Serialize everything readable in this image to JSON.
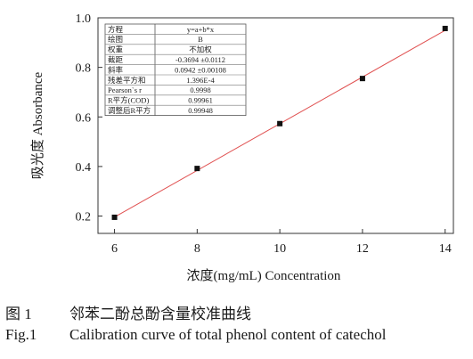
{
  "chart_data": {
    "type": "scatter",
    "xlabel": "浓度(mg/mL) Concentration",
    "ylabel": "吸光度 Absorbance",
    "xlim": [
      5.6,
      14.2
    ],
    "ylim": [
      0.13,
      1.0
    ],
    "xticks": [
      6,
      8,
      10,
      12,
      14
    ],
    "yticks": [
      0.2,
      0.4,
      0.6,
      0.8,
      1.0
    ],
    "x": [
      6,
      8,
      10,
      12,
      14
    ],
    "y": [
      0.195,
      0.392,
      0.573,
      0.755,
      0.957
    ],
    "fit": {
      "intercept": -0.3694,
      "slope": 0.0942
    },
    "colors": {
      "points": "#111111",
      "fit_line": "#e05050",
      "axes": "#333333"
    },
    "stats_table": [
      {
        "key": "方程",
        "value": "y=a+b*x"
      },
      {
        "key": "绘图",
        "value": "B"
      },
      {
        "key": "权重",
        "value": "不加权"
      },
      {
        "key": "截距",
        "value": "-0.3694 ±0.0112"
      },
      {
        "key": "斜率",
        "value": "0.0942 ±0.00108"
      },
      {
        "key": "残差平方和",
        "value": "1.396E-4"
      },
      {
        "key": "Pearson`s r",
        "value": "0.9998"
      },
      {
        "key": "R平方(COD)",
        "value": "0.99961"
      },
      {
        "key": "调整后R平方",
        "value": "0.99948"
      }
    ]
  },
  "caption": {
    "cn_label": "图 1",
    "cn_text": "邻苯二酚总酚含量校准曲线",
    "en_label": "Fig.1",
    "en_text": "Calibration curve of total phenol content of catechol"
  }
}
